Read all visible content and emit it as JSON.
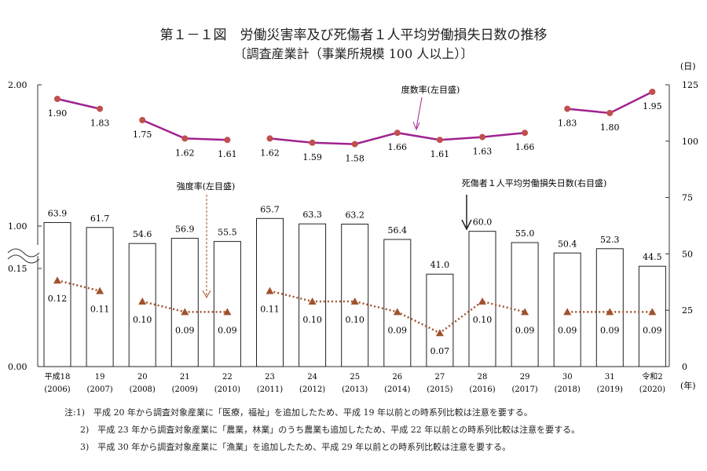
{
  "title": "第１－１図　労働災害率及び死傷者１人平均労働損失日数の推移",
  "subtitle": "〔調査産業計（事業所規模 100 人以上）〕",
  "chart_data": {
    "type": "bar+line",
    "categories": [
      [
        "平成18",
        "(2006)"
      ],
      [
        "19",
        "(2007)"
      ],
      [
        "20",
        "(2008)"
      ],
      [
        "21",
        "(2009)"
      ],
      [
        "22",
        "(2010)"
      ],
      [
        "23",
        "(2011)"
      ],
      [
        "24",
        "(2012)"
      ],
      [
        "25",
        "(2013)"
      ],
      [
        "26",
        "(2014)"
      ],
      [
        "27",
        "(2015)"
      ],
      [
        "28",
        "(2016)"
      ],
      [
        "29",
        "(2017)"
      ],
      [
        "30",
        "(2018)"
      ],
      [
        "31",
        "(2019)"
      ],
      [
        "令和2",
        "(2020)"
      ]
    ],
    "x_unit": "(年)",
    "right_unit": "(日)",
    "series": [
      {
        "name": "死傷者１人平均労働損失日数(右目盛)",
        "type": "bar",
        "axis": "right",
        "values": [
          63.9,
          61.7,
          54.6,
          56.9,
          55.5,
          65.7,
          63.3,
          63.2,
          56.4,
          41.0,
          60.0,
          55.0,
          50.4,
          52.3,
          44.5
        ],
        "labels": [
          "63.9",
          "61.7",
          "54.6",
          "56.9",
          "55.5",
          "65.7",
          "63.3",
          "63.2",
          "56.4",
          "41.0",
          "60.0",
          "55.0",
          "50.4",
          "52.3",
          "44.5"
        ]
      },
      {
        "name": "度数率(左目盛)",
        "type": "line",
        "axis": "left",
        "color": "#a0228f",
        "marker_color": "#c0504d",
        "values": [
          1.9,
          1.83,
          1.75,
          1.62,
          1.61,
          1.62,
          1.59,
          1.58,
          1.66,
          1.61,
          1.63,
          1.66,
          1.83,
          1.8,
          1.95
        ],
        "labels": [
          "1.90",
          "1.83",
          "1.75",
          "1.62",
          "1.61",
          "1.62",
          "1.59",
          "1.58",
          "1.66",
          "1.61",
          "1.63",
          "1.66",
          "1.83",
          "1.80",
          "1.95"
        ],
        "segments": [
          [
            0,
            1
          ],
          [
            2,
            4
          ],
          [
            5,
            11
          ],
          [
            12,
            14
          ]
        ]
      },
      {
        "name": "強度率(左目盛)",
        "type": "line",
        "style": "dotted",
        "axis": "left",
        "color": "#a0522d",
        "marker": "triangle",
        "values": [
          0.12,
          0.11,
          0.1,
          0.09,
          0.09,
          0.11,
          0.1,
          0.1,
          0.09,
          0.07,
          0.1,
          0.09,
          0.09,
          0.09,
          0.09
        ],
        "labels": [
          "0.12",
          "0.11",
          "0.10",
          "0.09",
          "0.09",
          "0.11",
          "0.10",
          "0.10",
          "0.09",
          "0.07",
          "0.10",
          "0.09",
          "0.09",
          "0.09",
          "0.09"
        ],
        "segments": [
          [
            0,
            1
          ],
          [
            2,
            4
          ],
          [
            5,
            11
          ],
          [
            12,
            14
          ]
        ]
      }
    ],
    "left_ticks": [
      "2.00",
      "1.00",
      "0.15",
      "0.00"
    ],
    "left_axis_break": true,
    "right_ticks": [
      "125",
      "100",
      "75",
      "50",
      "25",
      "0"
    ],
    "ylim_right": [
      0,
      125
    ],
    "ylim_left_upper": [
      1.0,
      2.0
    ]
  },
  "notes": [
    "注:1)　平成 20 年から調査対象産業に「医療，福祉」を追加したため、平成 19 年以前との時系列比較は注意を要する。",
    "2)　平成 23 年から調査対象産業に「農業，林業」のうち農業も追加したため、平成 22 年以前との時系列比較は注意を要する。",
    "3)　平成 30 年から調査対象産業に「漁業」を追加したため、平成 29 年以前との時系列比較は注意を要する。"
  ]
}
